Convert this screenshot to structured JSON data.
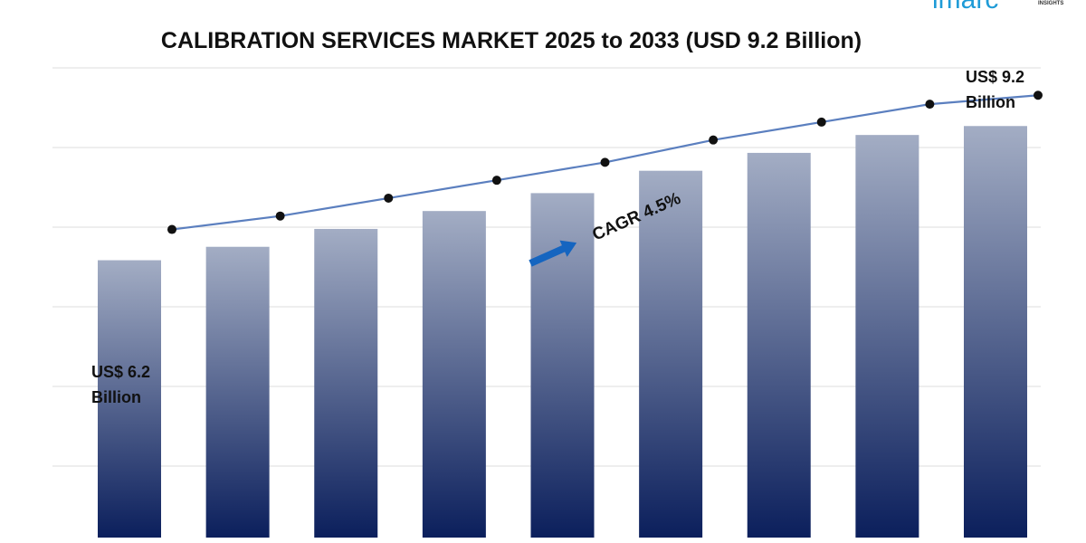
{
  "brand": {
    "name": "imarc",
    "tagline": "INSIGHTS"
  },
  "colors": {
    "bar_top": "#a3adc4",
    "bar_bottom": "#0b1f5c",
    "line": "#5b7fbf",
    "marker": "#111111",
    "arrow": "#1565c0",
    "grid": "#dcdcdc",
    "brand": "#1f9bd7"
  },
  "chart_data": {
    "type": "bar",
    "title": "CALIBRATION SERVICES MARKET 2025 to 2033 (USD 9.2 Billion)",
    "xlabel": "",
    "ylabel": "",
    "categories": [
      "",
      "",
      "",
      "",
      "",
      "",
      "",
      "",
      ""
    ],
    "values": [
      6.2,
      6.5,
      6.9,
      7.3,
      7.7,
      8.2,
      8.6,
      9.0,
      9.2
    ],
    "trend_line": [
      6.2,
      6.5,
      6.9,
      7.3,
      7.7,
      8.2,
      8.6,
      9.0,
      9.2
    ],
    "ylim": [
      0,
      10.5
    ],
    "grid": true,
    "legend": "none",
    "annotations": {
      "start_value": "US$ 6.2",
      "start_unit": "Billion",
      "end_value": "US$ 9.2",
      "end_unit": "Billion",
      "cagr": "CAGR 4.5%"
    }
  }
}
